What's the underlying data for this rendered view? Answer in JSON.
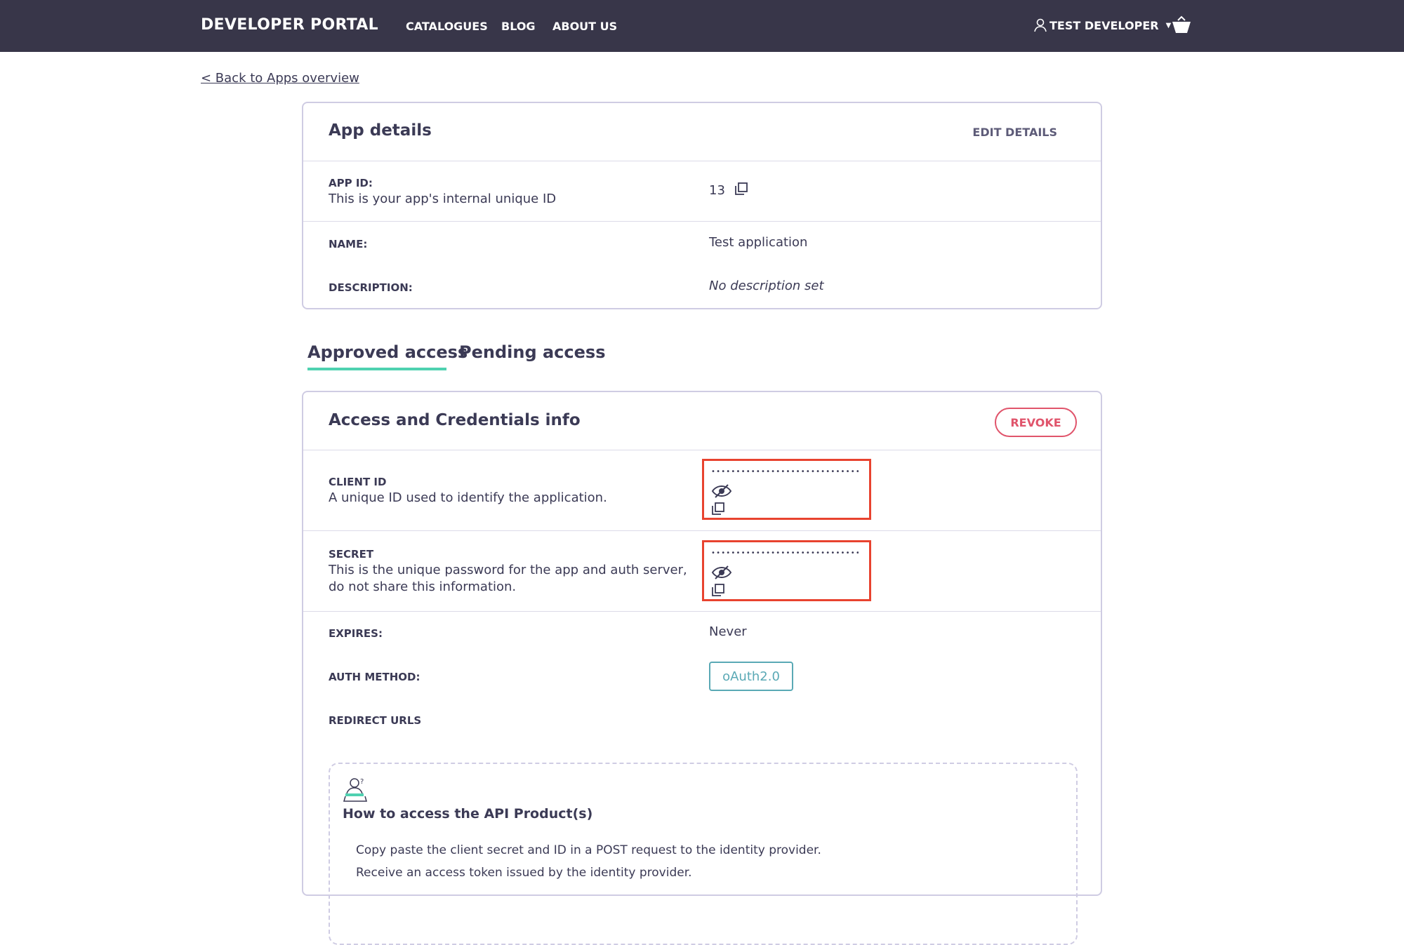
{
  "nav": {
    "brand": "DEVELOPER PORTAL",
    "links": [
      "CATALOGUES",
      "BLOG",
      "ABOUT US"
    ],
    "user": "TEST DEVELOPER"
  },
  "back_link": "< Back to Apps overview",
  "app_details": {
    "title": "App details",
    "edit": "EDIT DETAILS",
    "app_id_label": "APP ID:",
    "app_id_desc": "This is your app's internal unique ID",
    "app_id": "13",
    "name_label": "NAME:",
    "name": "Test application",
    "desc_label": "DESCRIPTION:",
    "desc": "No description set"
  },
  "tabs": {
    "approved": "Approved access",
    "pending": "Pending access"
  },
  "access": {
    "title": "Access and Credentials info",
    "revoke": "REVOKE",
    "client_id_label": "CLIENT ID",
    "client_id_desc": "A unique ID used to identify the application.",
    "client_id_masked": "••••••••••••••••••••••••••••••",
    "secret_label": "SECRET",
    "secret_desc1": "This is the unique password for the app and auth server,",
    "secret_desc2": "do not share this information.",
    "secret_masked": "••••••••••••••••••••••••••••••",
    "expires_label": "EXPIRES:",
    "expires": "Never",
    "auth_label": "AUTH METHOD:",
    "auth": "oAuth2.0",
    "redirect_label": "REDIRECT URLS"
  },
  "howto": {
    "title": "How to access the API Product(s)",
    "steps": [
      "Copy paste the client secret and ID in a POST request to the identity provider.",
      "Receive an access token issued by the identity provider."
    ]
  },
  "colors": {
    "nav": "#383649",
    "revoke": "#e0546b",
    "accent": "#4fd1b0",
    "badge": "#5aa9b5",
    "highlight": "#e8432f"
  }
}
